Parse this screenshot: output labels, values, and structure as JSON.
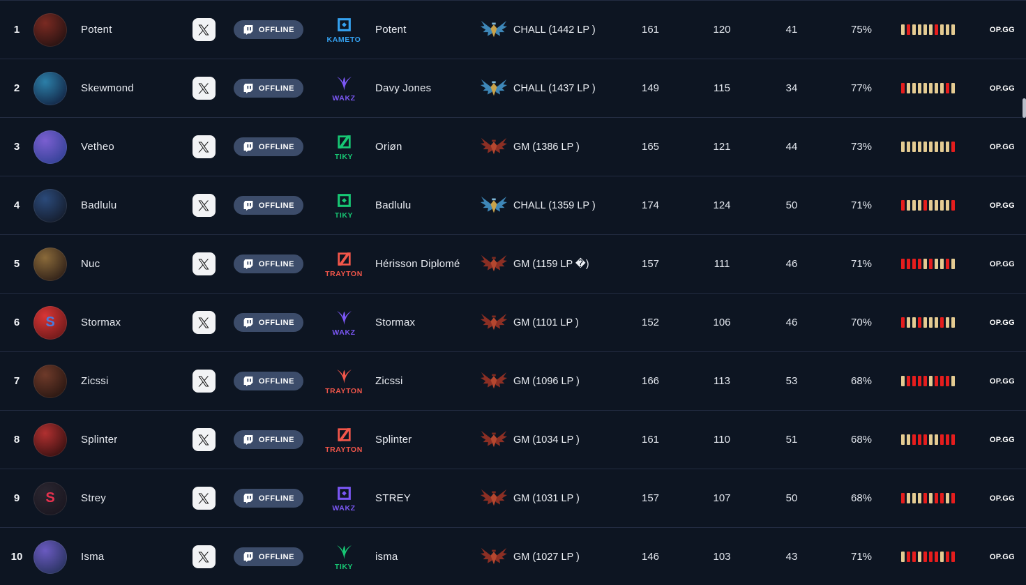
{
  "labels": {
    "offline": "OFFLINE",
    "opgg": "OP.GG"
  },
  "rows": [
    {
      "rank": "1",
      "player": "Potent",
      "team": "KAMETO",
      "team_color": "#35a1f0",
      "team_icon": "team-icon-square",
      "summoner": "Potent",
      "tier_text": "CHALL (1442 LP )",
      "tier_class": "chall",
      "games": "161",
      "wins": "120",
      "losses": "41",
      "winrate": "75%",
      "streak": [
        "W",
        "L",
        "W",
        "W",
        "W",
        "W",
        "L",
        "W",
        "W",
        "W"
      ],
      "avatar": {
        "from": "#7a2a22",
        "to": "#140d0e",
        "letter": "",
        "letter_color": ""
      }
    },
    {
      "rank": "2",
      "player": "Skewmond",
      "team": "WAKZ",
      "team_color": "#7b57f5",
      "team_icon": "team-icon-claw",
      "summoner": "Davy Jones",
      "tier_text": "CHALL (1437 LP )",
      "tier_class": "chall",
      "games": "149",
      "wins": "115",
      "losses": "34",
      "winrate": "77%",
      "streak": [
        "L",
        "W",
        "W",
        "W",
        "W",
        "W",
        "W",
        "W",
        "L",
        "W"
      ],
      "avatar": {
        "from": "#2c7fa8",
        "to": "#0d1230",
        "letter": "",
        "letter_color": ""
      }
    },
    {
      "rank": "3",
      "player": "Vetheo",
      "team": "TIKY",
      "team_color": "#17c774",
      "team_icon": "team-icon-slash",
      "summoner": "Oriøn",
      "tier_text": "GM (1386 LP )",
      "tier_class": "gm",
      "games": "165",
      "wins": "121",
      "losses": "44",
      "winrate": "73%",
      "streak": [
        "W",
        "W",
        "W",
        "W",
        "W",
        "W",
        "W",
        "W",
        "W",
        "L"
      ],
      "avatar": {
        "from": "#7a5fd0",
        "to": "#243b8a",
        "letter": "",
        "letter_color": ""
      }
    },
    {
      "rank": "4",
      "player": "Badlulu",
      "team": "TIKY",
      "team_color": "#17c774",
      "team_icon": "team-icon-square",
      "summoner": "Badlulu",
      "tier_text": "CHALL (1359 LP )",
      "tier_class": "chall",
      "games": "174",
      "wins": "124",
      "losses": "50",
      "winrate": "71%",
      "streak": [
        "L",
        "W",
        "W",
        "W",
        "L",
        "W",
        "W",
        "W",
        "W",
        "L"
      ],
      "avatar": {
        "from": "#2b4a7a",
        "to": "#10131c",
        "letter": "",
        "letter_color": ""
      }
    },
    {
      "rank": "5",
      "player": "Nuc",
      "team": "TRAYTON",
      "team_color": "#f2564a",
      "team_icon": "team-icon-slash",
      "summoner": "Hérisson Diplomé",
      "tier_text": "GM (1159 LP �)",
      "tier_class": "gm",
      "games": "157",
      "wins": "111",
      "losses": "46",
      "winrate": "71%",
      "streak": [
        "L",
        "L",
        "L",
        "L",
        "W",
        "L",
        "W",
        "W",
        "L",
        "W"
      ],
      "avatar": {
        "from": "#8a6a3a",
        "to": "#1a0f10",
        "letter": "",
        "letter_color": ""
      }
    },
    {
      "rank": "6",
      "player": "Stormax",
      "team": "WAKZ",
      "team_color": "#7b57f5",
      "team_icon": "team-icon-claw",
      "summoner": "Stormax",
      "tier_text": "GM (1101 LP )",
      "tier_class": "gm",
      "games": "152",
      "wins": "106",
      "losses": "46",
      "winrate": "70%",
      "streak": [
        "L",
        "W",
        "W",
        "L",
        "W",
        "W",
        "W",
        "L",
        "W",
        "W"
      ],
      "avatar": {
        "from": "#d83535",
        "to": "#571414",
        "letter": "S",
        "letter_color": "#4a7de0"
      }
    },
    {
      "rank": "7",
      "player": "Zicssi",
      "team": "TRAYTON",
      "team_color": "#f2564a",
      "team_icon": "team-icon-claw",
      "summoner": "Zicssi",
      "tier_text": "GM (1096 LP )",
      "tier_class": "gm",
      "games": "166",
      "wins": "113",
      "losses": "53",
      "winrate": "68%",
      "streak": [
        "W",
        "L",
        "L",
        "L",
        "L",
        "W",
        "L",
        "L",
        "L",
        "W"
      ],
      "avatar": {
        "from": "#6e3a2a",
        "to": "#1a0f0c",
        "letter": "",
        "letter_color": ""
      }
    },
    {
      "rank": "8",
      "player": "Splinter",
      "team": "TRAYTON",
      "team_color": "#f2564a",
      "team_icon": "team-icon-slash",
      "summoner": "Splinter",
      "tier_text": "GM (1034 LP )",
      "tier_class": "gm",
      "games": "161",
      "wins": "110",
      "losses": "51",
      "winrate": "68%",
      "streak": [
        "W",
        "W",
        "L",
        "L",
        "L",
        "W",
        "W",
        "L",
        "L",
        "L"
      ],
      "avatar": {
        "from": "#b03030",
        "to": "#200a0a",
        "letter": "",
        "letter_color": ""
      }
    },
    {
      "rank": "9",
      "player": "Strey",
      "team": "WAKZ",
      "team_color": "#7b57f5",
      "team_icon": "team-icon-square",
      "summoner": "STREY",
      "tier_text": "GM (1031 LP )",
      "tier_class": "gm",
      "games": "157",
      "wins": "107",
      "losses": "50",
      "winrate": "68%",
      "streak": [
        "L",
        "W",
        "W",
        "W",
        "L",
        "W",
        "L",
        "L",
        "W",
        "L"
      ],
      "avatar": {
        "from": "#2a2630",
        "to": "#17131c",
        "letter": "S",
        "letter_color": "#e8314e"
      }
    },
    {
      "rank": "10",
      "player": "Isma",
      "team": "TIKY",
      "team_color": "#17c774",
      "team_icon": "team-icon-claw",
      "summoner": "isma",
      "tier_text": "GM (1027 LP )",
      "tier_class": "gm",
      "games": "146",
      "wins": "103",
      "losses": "43",
      "winrate": "71%",
      "streak": [
        "W",
        "L",
        "L",
        "W",
        "L",
        "L",
        "L",
        "W",
        "L",
        "L"
      ],
      "avatar": {
        "from": "#6a5ac0",
        "to": "#1a2a4a",
        "letter": "",
        "letter_color": ""
      }
    }
  ]
}
